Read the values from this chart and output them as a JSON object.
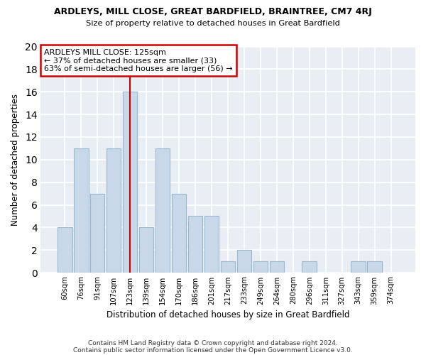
{
  "title": "ARDLEYS, MILL CLOSE, GREAT BARDFIELD, BRAINTREE, CM7 4RJ",
  "subtitle": "Size of property relative to detached houses in Great Bardfield",
  "xlabel": "Distribution of detached houses by size in Great Bardfield",
  "ylabel": "Number of detached properties",
  "categories": [
    "60sqm",
    "76sqm",
    "91sqm",
    "107sqm",
    "123sqm",
    "139sqm",
    "154sqm",
    "170sqm",
    "186sqm",
    "201sqm",
    "217sqm",
    "233sqm",
    "249sqm",
    "264sqm",
    "280sqm",
    "296sqm",
    "311sqm",
    "327sqm",
    "343sqm",
    "359sqm",
    "374sqm"
  ],
  "values": [
    4,
    11,
    7,
    11,
    16,
    4,
    11,
    7,
    5,
    5,
    1,
    2,
    1,
    1,
    0,
    1,
    0,
    0,
    1,
    1,
    0
  ],
  "bar_color": "#c8d8e8",
  "bar_edge_color": "#9ab8d0",
  "vline_index": 4,
  "vline_color": "#cc0000",
  "annotation_text": "ARDLEYS MILL CLOSE: 125sqm\n← 37% of detached houses are smaller (33)\n63% of semi-detached houses are larger (56) →",
  "annotation_box_color": "#ffffff",
  "annotation_box_edge": "#cc0000",
  "ylim": [
    0,
    20
  ],
  "yticks": [
    0,
    2,
    4,
    6,
    8,
    10,
    12,
    14,
    16,
    18,
    20
  ],
  "footer_line1": "Contains HM Land Registry data © Crown copyright and database right 2024.",
  "footer_line2": "Contains public sector information licensed under the Open Government Licence v3.0.",
  "bg_color": "#ffffff",
  "plot_bg_color": "#e8eef4",
  "grid_color": "#ffffff"
}
